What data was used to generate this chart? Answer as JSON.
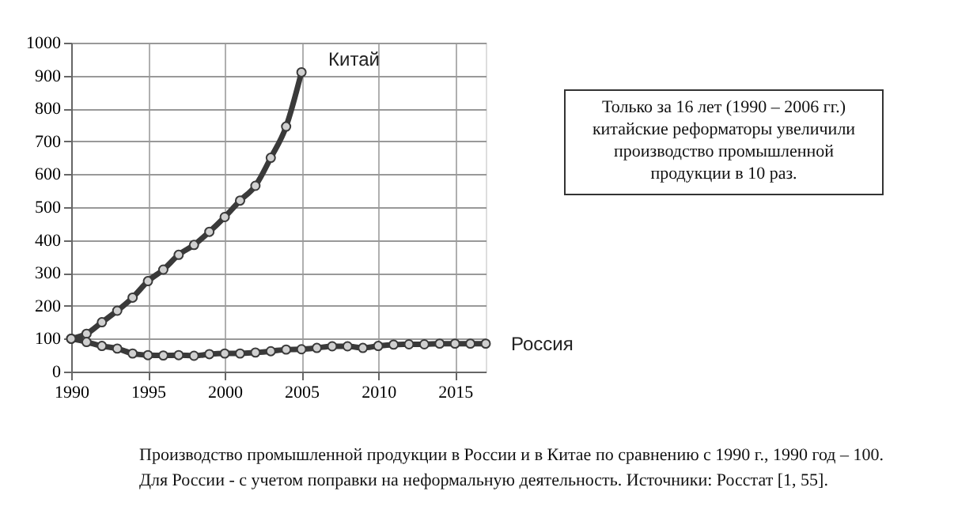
{
  "chart_data": {
    "type": "line",
    "x": [
      1990,
      1991,
      1992,
      1993,
      1994,
      1995,
      1996,
      1997,
      1998,
      1999,
      2000,
      2001,
      2002,
      2003,
      2004,
      2005,
      2006,
      2007,
      2008,
      2009,
      2010,
      2011,
      2012,
      2013,
      2014,
      2015,
      2016,
      2017
    ],
    "series": [
      {
        "name": "Китай",
        "color": "#3a3a3a",
        "x": [
          1990,
          1991,
          1992,
          1993,
          1994,
          1995,
          1996,
          1997,
          1998,
          1999,
          2000,
          2001,
          2002,
          2003,
          2004,
          2005
        ],
        "values": [
          100,
          115,
          150,
          185,
          225,
          275,
          310,
          355,
          385,
          425,
          470,
          520,
          565,
          650,
          745,
          910
        ]
      },
      {
        "name": "Россия",
        "color": "#3a3a3a",
        "values": [
          100,
          90,
          78,
          70,
          55,
          50,
          49,
          50,
          48,
          53,
          55,
          55,
          58,
          62,
          67,
          68,
          72,
          77,
          77,
          72,
          78,
          82,
          83,
          83,
          85,
          85,
          85,
          85
        ]
      }
    ],
    "xlim": [
      1990,
      2017
    ],
    "xticks": [
      1990,
      1995,
      2000,
      2005,
      2010,
      2015
    ],
    "ylim": [
      0,
      1000
    ],
    "yticks": [
      0,
      100,
      200,
      300,
      400,
      500,
      600,
      700,
      800,
      900,
      1000
    ],
    "grid": true,
    "marker": "circle",
    "line_style": "solid",
    "legend": false,
    "annotations": [
      "Только за 16 лет  (1990 – 2006 гг.)\nкитайские реформаторы увеличили\nпроизводство промышленной\nпродукции в 10 раз.",
      "Производство промышленной продукции в России и в Китае по сравнению с 1990 г., 1990 год – 100.\nДля России -  с учетом поправки на неформальную деятельность. Источники: Росстат [1, 55]."
    ]
  }
}
